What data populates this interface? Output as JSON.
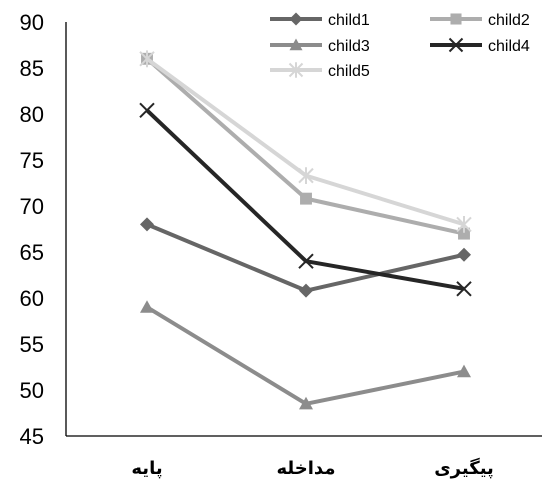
{
  "chart_data": {
    "type": "line",
    "title": "",
    "xlabel": "",
    "ylabel": "",
    "categories": [
      "پایه",
      "مداخله",
      "پیگیری"
    ],
    "ylim": [
      45,
      90
    ],
    "y_ticks": [
      45,
      50,
      55,
      60,
      65,
      70,
      75,
      80,
      85,
      90
    ],
    "grid": false,
    "legend_position": "top-right",
    "series": [
      {
        "name": "child1",
        "values": [
          68,
          60.8,
          64.7
        ],
        "color": "#666666",
        "marker": "diamond"
      },
      {
        "name": "child2",
        "values": [
          86,
          70.8,
          67
        ],
        "color": "#adadad",
        "marker": "square"
      },
      {
        "name": "child3",
        "values": [
          59,
          48.5,
          52
        ],
        "color": "#8c8c8c",
        "marker": "triangle"
      },
      {
        "name": "child4",
        "values": [
          80.4,
          64,
          61
        ],
        "color": "#262626",
        "marker": "x"
      },
      {
        "name": "child5",
        "values": [
          86,
          73.3,
          68
        ],
        "color": "#d6d6d6",
        "marker": "star"
      }
    ]
  }
}
